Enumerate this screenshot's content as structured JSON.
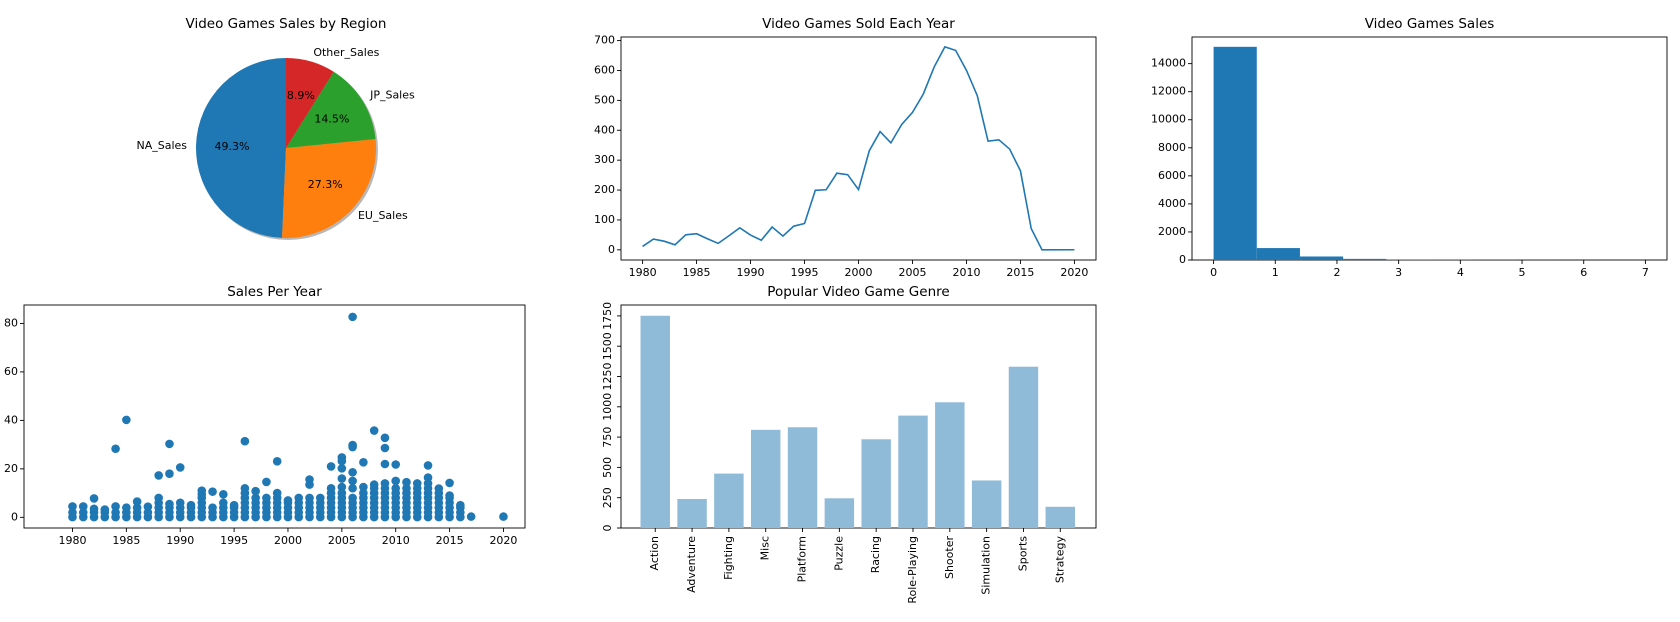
{
  "chart_data": [
    {
      "type": "pie",
      "title": "Video Games Sales by Region",
      "categories": [
        "NA_Sales",
        "EU_Sales",
        "JP_Sales",
        "Other_Sales"
      ],
      "values": [
        49.3,
        27.3,
        14.5,
        8.9
      ],
      "value_labels": [
        "49.3%",
        "27.3%",
        "14.5%",
        "8.9%"
      ],
      "colors": [
        "#1f77b4",
        "#ff7f0e",
        "#2ca02c",
        "#d62728"
      ]
    },
    {
      "type": "line",
      "title": "Video Games Sold Each Year",
      "x": [
        1980,
        1981,
        1982,
        1983,
        1984,
        1985,
        1986,
        1987,
        1988,
        1989,
        1990,
        1991,
        1992,
        1993,
        1994,
        1995,
        1996,
        1997,
        1998,
        1999,
        2000,
        2001,
        2002,
        2003,
        2004,
        2005,
        2006,
        2007,
        2008,
        2009,
        2010,
        2011,
        2012,
        2013,
        2014,
        2015,
        2016,
        2017,
        2020
      ],
      "values": [
        11.4,
        35.8,
        28.9,
        16.8,
        50.4,
        53.9,
        37.1,
        21.7,
        47.2,
        73.5,
        49.4,
        32.2,
        76.2,
        46.0,
        79.2,
        88.1,
        199.2,
        201.0,
        256.5,
        251.3,
        201.6,
        331.5,
        395.5,
        357.9,
        419.3,
        459.9,
        521.0,
        611.1,
        678.9,
        667.3,
        600.5,
        516.0,
        363.5,
        368.1,
        337.1,
        264.4,
        70.9,
        0.1,
        0.3
      ],
      "color": "#1f77b4",
      "xlim": [
        1978,
        2022
      ],
      "xticks": [
        1980,
        1985,
        1990,
        1995,
        2000,
        2005,
        2010,
        2015,
        2020
      ],
      "ylim": [
        -34,
        712
      ],
      "yticks": [
        0,
        100,
        200,
        300,
        400,
        500,
        600,
        700
      ]
    },
    {
      "type": "histogram",
      "title": "Video Games Sales",
      "bins": [
        0,
        0.7,
        1.4,
        2.1,
        2.8,
        3.5,
        4.2,
        4.9,
        5.6,
        6.3,
        7.0
      ],
      "values": [
        15200,
        850,
        250,
        80,
        40,
        25,
        15,
        10,
        5,
        3
      ],
      "color": "#1f77b4",
      "xlim": [
        -0.35,
        7.35
      ],
      "xticks": [
        0,
        1,
        2,
        3,
        4,
        5,
        6,
        7
      ],
      "ylim": [
        0,
        15900
      ],
      "yticks": [
        0,
        2000,
        4000,
        6000,
        8000,
        10000,
        12000,
        14000
      ]
    },
    {
      "type": "scatter",
      "title": "Sales Per Year",
      "x": [
        1980,
        1980,
        1980,
        1981,
        1981,
        1981,
        1982,
        1982,
        1982,
        1982,
        1983,
        1983,
        1983,
        1984,
        1984,
        1984,
        1984,
        1985,
        1985,
        1985,
        1985,
        1986,
        1986,
        1986,
        1986,
        1987,
        1987,
        1987,
        1988,
        1988,
        1988,
        1988,
        1988,
        1988,
        1989,
        1989,
        1989,
        1989,
        1989,
        1989,
        1990,
        1990,
        1990,
        1990,
        1990,
        1991,
        1991,
        1991,
        1991,
        1992,
        1992,
        1992,
        1992,
        1992,
        1992,
        1992,
        1993,
        1993,
        1993,
        1993,
        1994,
        1994,
        1994,
        1994,
        1994,
        1995,
        1995,
        1995,
        1995,
        1996,
        1996,
        1996,
        1996,
        1996,
        1996,
        1996,
        1996,
        1997,
        1997,
        1997,
        1997,
        1997,
        1997,
        1998,
        1998,
        1998,
        1998,
        1998,
        1998,
        1999,
        1999,
        1999,
        1999,
        1999,
        1999,
        1999,
        2000,
        2000,
        2000,
        2000,
        2000,
        2001,
        2001,
        2001,
        2001,
        2001,
        2002,
        2002,
        2002,
        2002,
        2002,
        2002,
        2002,
        2003,
        2003,
        2003,
        2003,
        2003,
        2004,
        2004,
        2004,
        2004,
        2004,
        2004,
        2004,
        2004,
        2005,
        2005,
        2005,
        2005,
        2005,
        2005,
        2005,
        2005,
        2005,
        2005,
        2005,
        2006,
        2006,
        2006,
        2006,
        2006,
        2006,
        2006,
        2006,
        2006,
        2006,
        2006,
        2007,
        2007,
        2007,
        2007,
        2007,
        2007,
        2007,
        2007,
        2008,
        2008,
        2008,
        2008,
        2008,
        2008,
        2008,
        2008,
        2008,
        2009,
        2009,
        2009,
        2009,
        2009,
        2009,
        2009,
        2009,
        2009,
        2009,
        2009,
        2010,
        2010,
        2010,
        2010,
        2010,
        2010,
        2010,
        2010,
        2010,
        2011,
        2011,
        2011,
        2011,
        2011,
        2011,
        2011,
        2011,
        2012,
        2012,
        2012,
        2012,
        2012,
        2012,
        2012,
        2012,
        2013,
        2013,
        2013,
        2013,
        2013,
        2013,
        2013,
        2013,
        2013,
        2013,
        2014,
        2014,
        2014,
        2014,
        2014,
        2014,
        2014,
        2015,
        2015,
        2015,
        2015,
        2015,
        2015,
        2015,
        2016,
        2016,
        2016,
        2016,
        2017,
        2020
      ],
      "values": [
        0.1,
        2,
        4.5,
        0.1,
        2,
        4.5,
        0.1,
        2,
        3.5,
        7.8,
        0.1,
        2,
        3.2,
        0.1,
        2,
        4.5,
        28.3,
        0.1,
        2,
        4,
        40.2,
        0.1,
        2,
        4,
        6.5,
        0.1,
        2,
        4.4,
        0.1,
        2,
        4,
        6,
        8,
        17.3,
        0.1,
        2,
        4,
        5.5,
        18,
        30.3,
        0.1,
        2,
        4,
        6,
        20.6,
        0.1,
        2,
        4,
        5,
        0.1,
        2,
        4,
        6,
        8,
        9.5,
        11,
        0.1,
        2,
        4,
        10.6,
        0.1,
        2,
        4,
        6,
        9.5,
        0.1,
        2,
        4,
        5,
        0.1,
        2,
        4,
        6,
        8,
        10,
        12,
        31.4,
        0.1,
        2,
        4,
        6,
        8,
        10.8,
        0.1,
        2,
        4,
        6,
        8,
        14.6,
        0.1,
        2,
        4,
        6,
        8,
        10,
        23.1,
        0.1,
        2,
        4,
        6,
        7,
        0.1,
        2,
        4,
        6,
        8,
        0.1,
        2,
        4,
        6,
        8,
        13.5,
        15.6,
        0.1,
        2,
        4,
        6,
        8,
        0.1,
        2,
        4,
        6,
        8,
        10,
        12,
        21,
        0.1,
        2,
        4,
        6,
        8,
        10,
        12.5,
        16,
        20.2,
        23.2,
        24.7,
        0.1,
        2,
        4,
        6,
        8,
        12,
        15,
        18.6,
        29,
        29.8,
        82.7,
        0.1,
        2,
        4,
        6,
        8,
        10,
        12.5,
        22.7,
        0.1,
        2,
        4,
        6,
        8,
        10,
        12,
        13.5,
        35.8,
        0.1,
        2,
        4,
        6,
        8,
        10,
        12,
        14,
        22,
        28.6,
        32.8,
        0.1,
        2,
        4,
        6,
        8,
        10,
        12,
        15,
        21.8,
        0.1,
        2,
        4,
        6,
        8,
        10,
        12,
        14.5,
        0.1,
        2,
        4,
        6,
        8,
        10,
        12,
        14,
        0.1,
        2,
        4,
        6,
        8,
        10,
        12,
        14,
        16.4,
        21.4,
        0.1,
        2,
        4,
        6,
        8,
        10,
        11.9,
        0.1,
        2,
        4,
        6,
        8,
        9,
        14.2,
        0.1,
        2,
        4,
        5,
        0.3,
        0.3
      ],
      "color": "#1f77b4",
      "xlim": [
        1975.5,
        2022
      ],
      "xticks": [
        1980,
        1985,
        1990,
        1995,
        2000,
        2005,
        2010,
        2015,
        2020
      ],
      "ylim": [
        -4.4,
        87.6
      ],
      "yticks": [
        0,
        20,
        40,
        60,
        80
      ]
    },
    {
      "type": "bar",
      "title": "Popular Video Game Genre",
      "categories": [
        "Action",
        "Adventure",
        "Fighting",
        "Misc",
        "Platform",
        "Puzzle",
        "Racing",
        "Role-Playing",
        "Shooter",
        "Simulation",
        "Sports",
        "Strategy"
      ],
      "values": [
        1751.2,
        239.0,
        448.9,
        810.0,
        831.4,
        245.0,
        732.0,
        927.4,
        1037.4,
        392.2,
        1330.9,
        175.1
      ],
      "color": "#8fbbd9",
      "ylim": [
        0,
        1840
      ],
      "yticks": [
        0,
        250,
        500,
        750,
        1000,
        1250,
        1500,
        1750
      ]
    }
  ]
}
